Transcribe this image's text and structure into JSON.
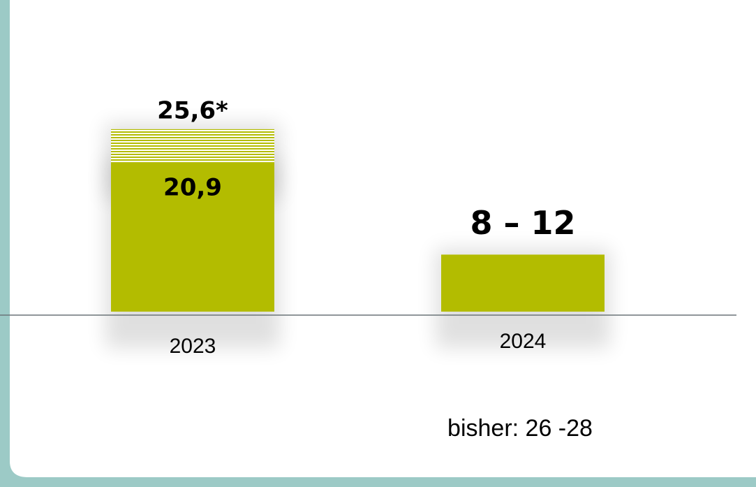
{
  "chart_data": {
    "type": "bar",
    "categories": [
      "2023",
      "2024"
    ],
    "series": [
      {
        "color": "#b3bc00",
        "values": [
          20.9,
          8
        ],
        "value_labels": [
          "20,9",
          "8 – 12"
        ]
      },
      {
        "color": "#b3bc00",
        "hatched": true,
        "values": [
          4.7,
          null
        ]
      }
    ],
    "totals": [
      25.6,
      null
    ],
    "total_labels": [
      "25,6*",
      null
    ],
    "ylim": [
      0,
      30
    ],
    "annotation": "bisher: 26 -28"
  }
}
